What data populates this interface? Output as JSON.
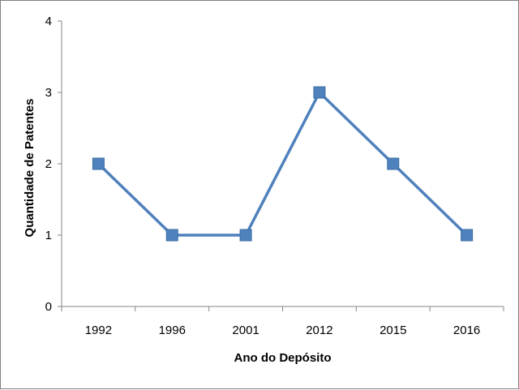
{
  "chart_data": {
    "type": "line",
    "title": "",
    "xlabel": "Ano do Depósito",
    "ylabel": "Quantidade de Patentes",
    "categories": [
      "1992",
      "1996",
      "2001",
      "2012",
      "2015",
      "2016"
    ],
    "series": [
      {
        "values": [
          2,
          1,
          1,
          3,
          2,
          1
        ]
      }
    ],
    "ylim": [
      0,
      4
    ],
    "yticks": [
      "0",
      "1",
      "2",
      "3",
      "4"
    ],
    "grid": false,
    "legend": "none",
    "colors": {
      "series": "#4f81bd",
      "marker": "#4f81bd",
      "axis": "#868686"
    }
  }
}
